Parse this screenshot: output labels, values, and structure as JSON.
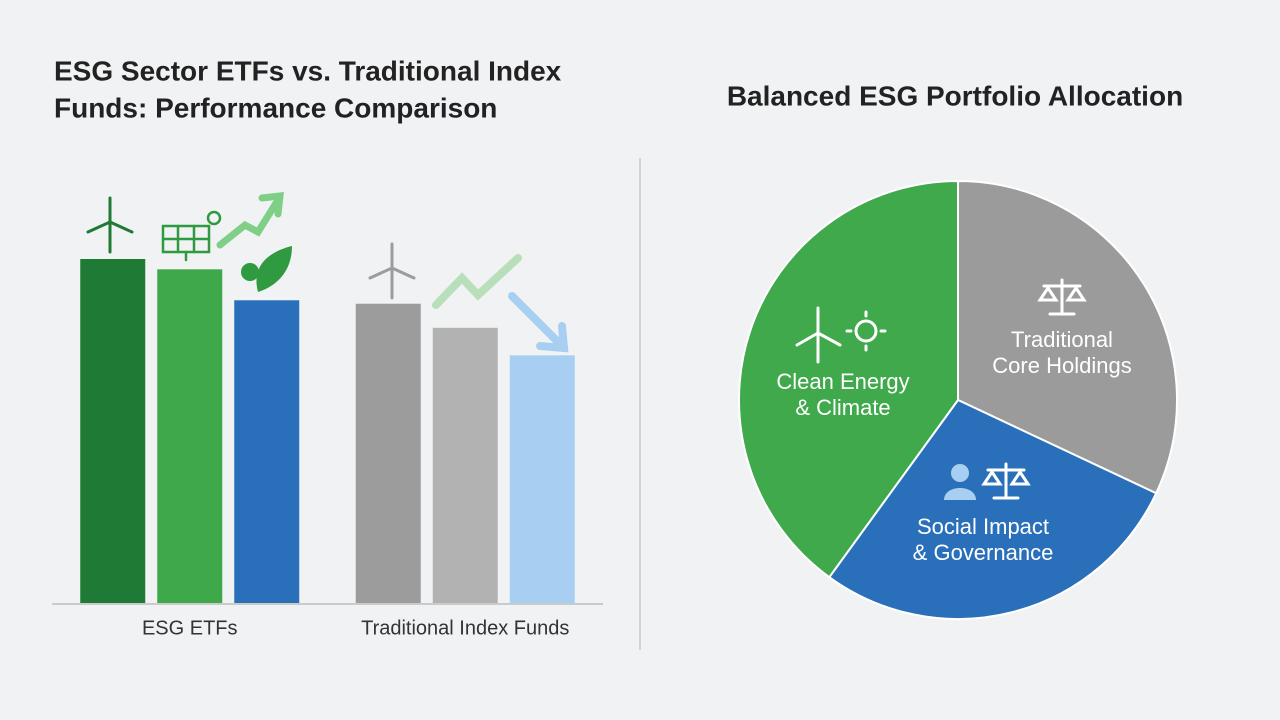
{
  "chart_data": [
    {
      "type": "bar",
      "title": [
        "ESG Sector ETFs vs. Traditional Index",
        "Funds: Performance Comparison"
      ],
      "categories": [
        "ESG ETFs",
        "Traditional Index Funds"
      ],
      "series": [
        {
          "colors": [
            "#1e7a34",
            "#9c9c9c"
          ],
          "values": [
            100,
            87
          ]
        },
        {
          "colors": [
            "#3ea84a",
            "#b2b2b2"
          ],
          "values": [
            97,
            80
          ]
        },
        {
          "colors": [
            "#2a6fba",
            "#a8cff1"
          ],
          "values": [
            88,
            72
          ]
        }
      ],
      "ylim": [
        0,
        100
      ]
    },
    {
      "type": "pie",
      "title": "Balanced ESG Portfolio Allocation",
      "labels": [
        [
          "Traditional",
          "Core Holdings"
        ],
        [
          "Social Impact",
          "& Governance"
        ],
        [
          "Clean Energy",
          "& Climate"
        ]
      ],
      "values": [
        32,
        28,
        40
      ],
      "colors": [
        "#9b9b9b",
        "#2a6fba",
        "#3fa94b"
      ]
    }
  ]
}
